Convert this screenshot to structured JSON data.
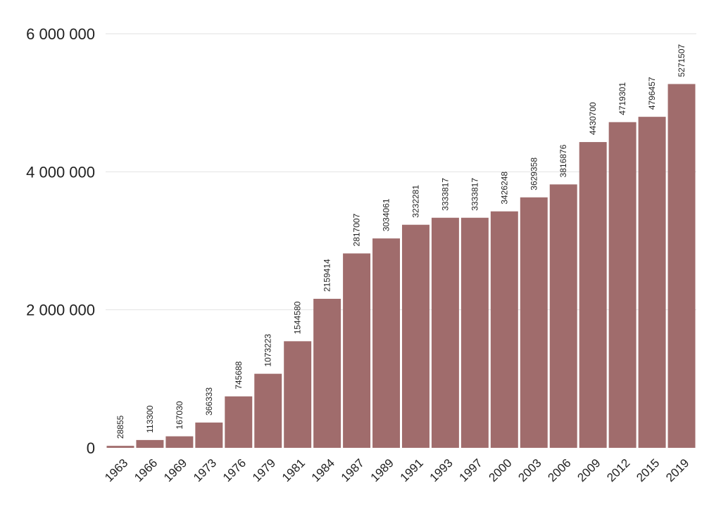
{
  "chart_data": {
    "type": "bar",
    "title": "",
    "xlabel": "",
    "ylabel": "",
    "ylim": [
      0,
      6000000
    ],
    "yticks": [
      0,
      2000000,
      4000000,
      6000000
    ],
    "ytick_labels": [
      "0",
      "2 000 000",
      "4 000 000",
      "6 000 000"
    ],
    "grid": true,
    "legend": "none",
    "bar_color": "#a06c6c",
    "categories": [
      "1963",
      "1966",
      "1969",
      "1973",
      "1976",
      "1979",
      "1981",
      "1984",
      "1987",
      "1989",
      "1991",
      "1993",
      "1997",
      "2000",
      "2003",
      "2006",
      "2009",
      "2012",
      "2015",
      "2019"
    ],
    "values": [
      28855,
      113300,
      167030,
      366333,
      745688,
      1073223,
      1544580,
      2159414,
      2817007,
      3034061,
      3232281,
      3333817,
      3333817,
      3426248,
      3629358,
      3816876,
      4430700,
      4719301,
      4796457,
      5271507
    ]
  }
}
